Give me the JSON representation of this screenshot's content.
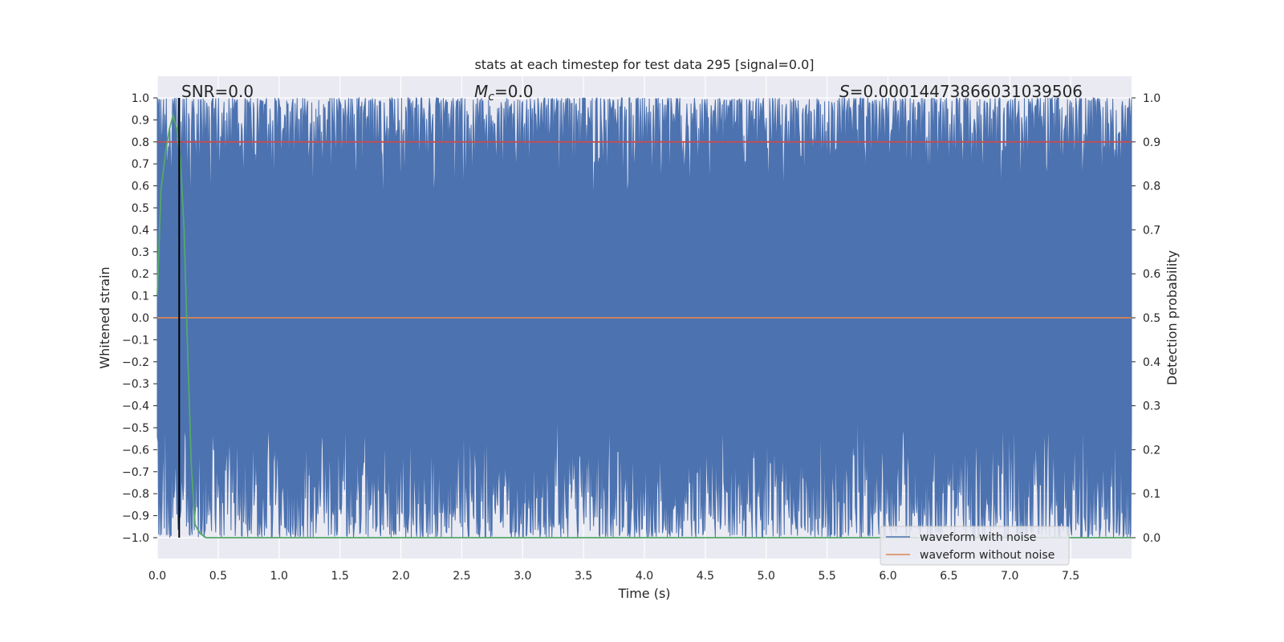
{
  "chart_data": {
    "type": "line",
    "title": "stats at each timestep for test data 295 [signal=0.0]",
    "xlabel": "Time (s)",
    "ylabel_left": "Whitened strain",
    "ylabel_right": "Detection probability",
    "xlim": [
      0.0,
      8.0
    ],
    "ylim_left": [
      -1.0,
      1.0
    ],
    "ylim_right": [
      0.0,
      1.0
    ],
    "x_ticks": [
      "0.0",
      "0.5",
      "1.0",
      "1.5",
      "2.0",
      "2.5",
      "3.0",
      "3.5",
      "4.0",
      "4.5",
      "5.0",
      "5.5",
      "6.0",
      "6.5",
      "7.0",
      "7.5"
    ],
    "y_ticks_left": [
      "1.0",
      "0.9",
      "0.8",
      "0.7",
      "0.6",
      "0.5",
      "0.4",
      "0.3",
      "0.2",
      "0.1",
      "0.0",
      "−0.1",
      "−0.2",
      "−0.3",
      "−0.4",
      "−0.5",
      "−0.6",
      "−0.7",
      "−0.8",
      "−0.9",
      "−1.0"
    ],
    "y_ticks_right": [
      "1.0",
      "0.9",
      "0.8",
      "0.7",
      "0.6",
      "0.5",
      "0.4",
      "0.3",
      "0.2",
      "0.1",
      "0.0"
    ],
    "grid": true,
    "legend_position": "lower-right",
    "annotations": {
      "snr": "SNR=0.0",
      "mc_symbol": "M",
      "mc_subscript": "c",
      "mc_value": "=0.0",
      "s_symbol": "S",
      "s_value": "=0.00014473866031039506"
    },
    "series": [
      {
        "name": "waveform with noise",
        "color": "#4c72b0",
        "axis": "left",
        "kind": "noise",
        "approx_range": [
          -1.0,
          1.0
        ]
      },
      {
        "name": "waveform without noise",
        "color": "#dd8452",
        "axis": "left",
        "x": [
          0.0,
          8.0
        ],
        "y": [
          0.0,
          0.0
        ]
      },
      {
        "color": "#55a868",
        "axis": "right",
        "x": [
          0.0,
          0.03,
          0.07,
          0.1,
          0.13,
          0.16,
          0.19,
          0.22,
          0.25,
          0.28,
          0.31,
          0.35,
          0.4,
          8.0
        ],
        "y": [
          0.55,
          0.79,
          0.88,
          0.93,
          0.96,
          0.93,
          0.86,
          0.7,
          0.42,
          0.16,
          0.03,
          0.01,
          0.0,
          0.0
        ]
      },
      {
        "color": "#c44e52",
        "axis": "right",
        "x": [
          0.0,
          8.0
        ],
        "y": [
          0.9,
          0.9
        ]
      },
      {
        "color": "#000000",
        "axis": "left",
        "x": [
          0.18,
          0.18
        ],
        "y": [
          -1.0,
          1.0
        ]
      }
    ]
  }
}
